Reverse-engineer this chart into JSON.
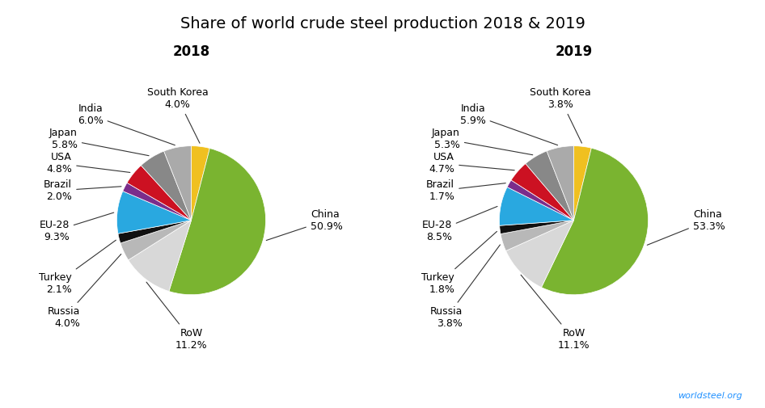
{
  "title": "Share of world crude steel production 2018 & 2019",
  "title_fontsize": 14,
  "subtitle_2018": "2018",
  "subtitle_2019": "2019",
  "subtitle_fontsize": 12,
  "watermark": "worldsteel.org",
  "labels_2018": [
    "South Korea",
    "China",
    "RoW",
    "Russia",
    "Turkey",
    "EU-28",
    "Brazil",
    "USA",
    "Japan",
    "India"
  ],
  "values_2018": [
    4.0,
    50.9,
    11.2,
    4.0,
    2.1,
    9.3,
    2.0,
    4.8,
    5.8,
    6.0
  ],
  "labels_2019": [
    "South Korea",
    "China",
    "RoW",
    "Russia",
    "Turkey",
    "EU-28",
    "Brazil",
    "USA",
    "Japan",
    "India"
  ],
  "values_2019": [
    3.8,
    53.3,
    11.1,
    3.8,
    1.8,
    8.5,
    1.7,
    4.7,
    5.3,
    5.9
  ],
  "color_map": {
    "China": "#7ab430",
    "RoW": "#d8d8d8",
    "Russia": "#b8b8b8",
    "Turkey": "#111111",
    "EU-28": "#29a8e0",
    "Brazil": "#7b2d8b",
    "USA": "#cc1122",
    "Japan": "#888888",
    "India": "#aaaaaa",
    "South Korea": "#f0c020"
  },
  "background_color": "#ffffff",
  "startangle": 90,
  "label_fontsize": 9,
  "leader_line_color": "#333333"
}
